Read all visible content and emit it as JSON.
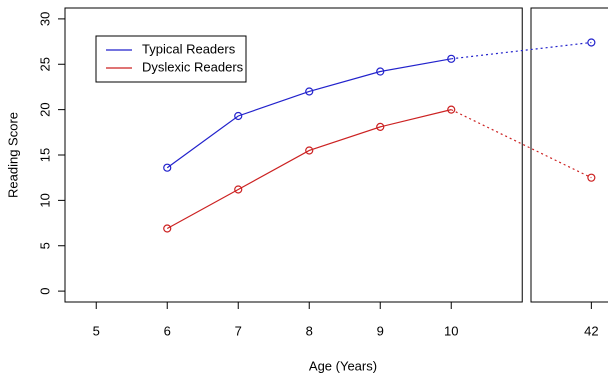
{
  "chart_data": {
    "type": "line",
    "x_label": "Age (Years)",
    "y_label": "Reading Score",
    "x": [
      6,
      7,
      8,
      9,
      10,
      42
    ],
    "xlim_segments": [
      [
        4.56,
        11.0
      ],
      [
        41.15,
        42.85
      ]
    ],
    "xticks": [
      5,
      6,
      7,
      8,
      9,
      10,
      42
    ],
    "ylim": [
      -1.2,
      31.2
    ],
    "yticks": [
      0,
      5,
      10,
      15,
      20,
      25,
      30
    ],
    "dotted_after_x": 10,
    "legend": "top-left",
    "series": [
      {
        "name": "Typical Readers",
        "color": "#2222cc",
        "values": [
          13.6,
          19.3,
          22.0,
          24.2,
          25.6,
          27.4
        ]
      },
      {
        "name": "Dyslexic Readers",
        "color": "#cc2222",
        "values": [
          6.9,
          11.2,
          15.5,
          18.1,
          20.0,
          12.5
        ]
      }
    ]
  }
}
